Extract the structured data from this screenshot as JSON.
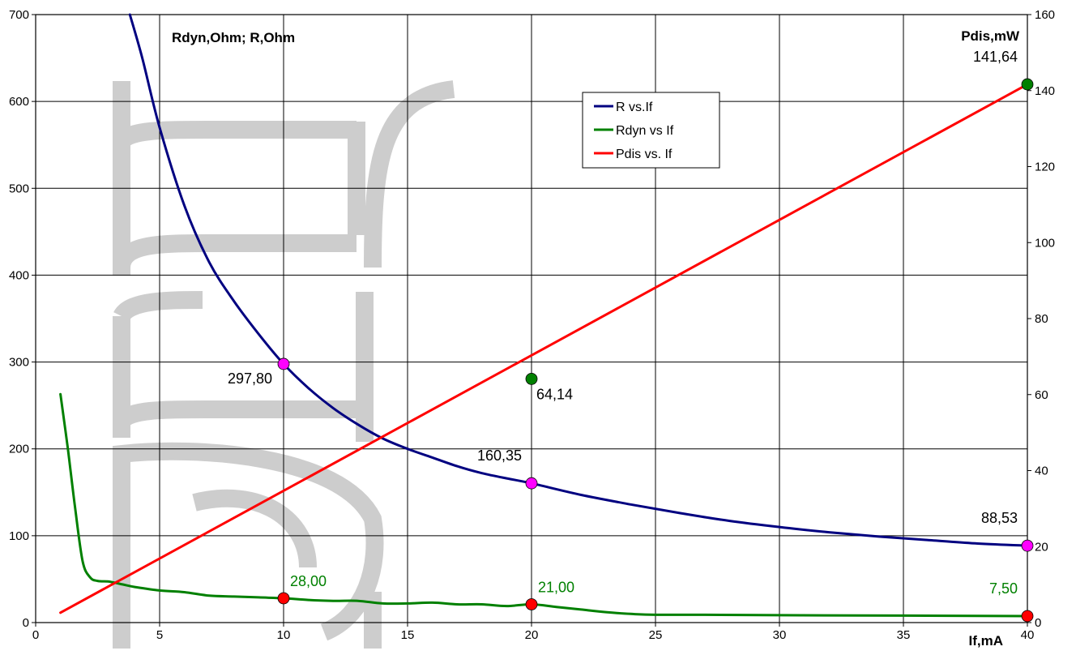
{
  "chart_data": {
    "type": "line",
    "x_axis": {
      "label": "If,mA",
      "range": [
        0,
        40
      ],
      "ticks": [
        0,
        5,
        10,
        15,
        20,
        25,
        30,
        35,
        40
      ]
    },
    "y_axis_left": {
      "label": "Rdyn,Ohm; R,Ohm",
      "range": [
        0,
        700
      ],
      "ticks": [
        0,
        100,
        200,
        300,
        400,
        500,
        600,
        700
      ]
    },
    "y_axis_right": {
      "label": "Pdis,mW",
      "range": [
        0,
        160
      ],
      "ticks": [
        0,
        20,
        40,
        60,
        80,
        100,
        120,
        140,
        160
      ]
    },
    "grid": true,
    "legend_position": "top-center-right",
    "colors": {
      "r": "#000080",
      "rdyn": "#008000",
      "pdis": "#ff0000",
      "marker_r": "#ff00ff",
      "marker_green": "#008000",
      "marker_red": "#ff0000"
    },
    "series": [
      {
        "name": "R vs.If",
        "axis": "left",
        "x": [
          3.8,
          4.3,
          5,
          6,
          7,
          8,
          9,
          10,
          11,
          12,
          13,
          14,
          15,
          16,
          17,
          18,
          19,
          20,
          22,
          24,
          26,
          28,
          30,
          32,
          34,
          36,
          38,
          40
        ],
        "y": [
          700,
          650,
          570,
          480,
          415,
          370,
          332,
          297.8,
          270,
          247,
          228,
          212,
          200,
          190,
          180,
          172,
          166,
          160.35,
          147,
          136,
          126,
          117,
          110,
          104,
          99,
          95,
          91,
          88.53
        ]
      },
      {
        "name": "Rdyn vs If",
        "axis": "left",
        "x": [
          1,
          1.3,
          1.6,
          1.9,
          2.2,
          2.5,
          3,
          3.5,
          4,
          5,
          6,
          7,
          8,
          9,
          10,
          11,
          12,
          13,
          14,
          15,
          16,
          17,
          18,
          19,
          20,
          21,
          22,
          23,
          24,
          25,
          27,
          30,
          35,
          40
        ],
        "y": [
          263,
          200,
          130,
          70,
          52,
          48,
          47,
          44,
          41,
          37,
          35,
          31,
          30,
          29,
          28,
          26,
          25,
          25,
          22,
          22,
          23,
          21,
          21,
          19,
          21,
          18,
          15,
          12,
          10,
          9,
          9,
          8.5,
          8,
          7.5
        ]
      },
      {
        "name": "Pdis vs. If",
        "axis": "right",
        "x": [
          1,
          40
        ],
        "y": [
          2.6,
          141.64
        ]
      }
    ],
    "markers": [
      {
        "series": "R vs.If",
        "x": 10,
        "y": 297.8,
        "axis": "left",
        "color": "#ff00ff"
      },
      {
        "series": "R vs.If",
        "x": 20,
        "y": 160.35,
        "axis": "left",
        "color": "#ff00ff"
      },
      {
        "series": "R vs.If",
        "x": 40,
        "y": 88.53,
        "axis": "left",
        "color": "#ff00ff"
      },
      {
        "series": "Rdyn vs If",
        "x": 10,
        "y": 28,
        "axis": "left",
        "color": "#ff0000"
      },
      {
        "series": "Rdyn vs If",
        "x": 20,
        "y": 21,
        "axis": "left",
        "color": "#ff0000"
      },
      {
        "series": "Rdyn vs If",
        "x": 40,
        "y": 7.5,
        "axis": "left",
        "color": "#ff0000"
      },
      {
        "series": "Pdis vs. If",
        "x": 20,
        "y": 64.14,
        "axis": "right",
        "color": "#008000"
      },
      {
        "series": "Pdis vs. If",
        "x": 40,
        "y": 141.64,
        "axis": "right",
        "color": "#008000"
      }
    ],
    "data_labels": [
      {
        "text": "297,80",
        "x": 10,
        "y": 297.8,
        "axis": "left",
        "color": "#000000",
        "anchor": "left-of-point"
      },
      {
        "text": "160,35",
        "x": 20,
        "y": 160.35,
        "axis": "left",
        "color": "#000000",
        "anchor": "above-left"
      },
      {
        "text": "88,53",
        "x": 40,
        "y": 88.53,
        "axis": "left",
        "color": "#000000",
        "anchor": "above-left"
      },
      {
        "text": "64,14",
        "x": 20,
        "y": 64.14,
        "axis": "right",
        "color": "#000000",
        "anchor": "below-right"
      },
      {
        "text": "141,64",
        "x": 40,
        "y": 141.64,
        "axis": "right",
        "color": "#000000",
        "anchor": "above-left"
      },
      {
        "text": "28,00",
        "x": 10,
        "y": 28,
        "axis": "left",
        "color": "#008000",
        "anchor": "above-right"
      },
      {
        "text": "21,00",
        "x": 20,
        "y": 21,
        "axis": "left",
        "color": "#008000",
        "anchor": "above-right"
      },
      {
        "text": "7,50",
        "x": 40,
        "y": 7.5,
        "axis": "left",
        "color": "#008000",
        "anchor": "above-left"
      }
    ]
  }
}
